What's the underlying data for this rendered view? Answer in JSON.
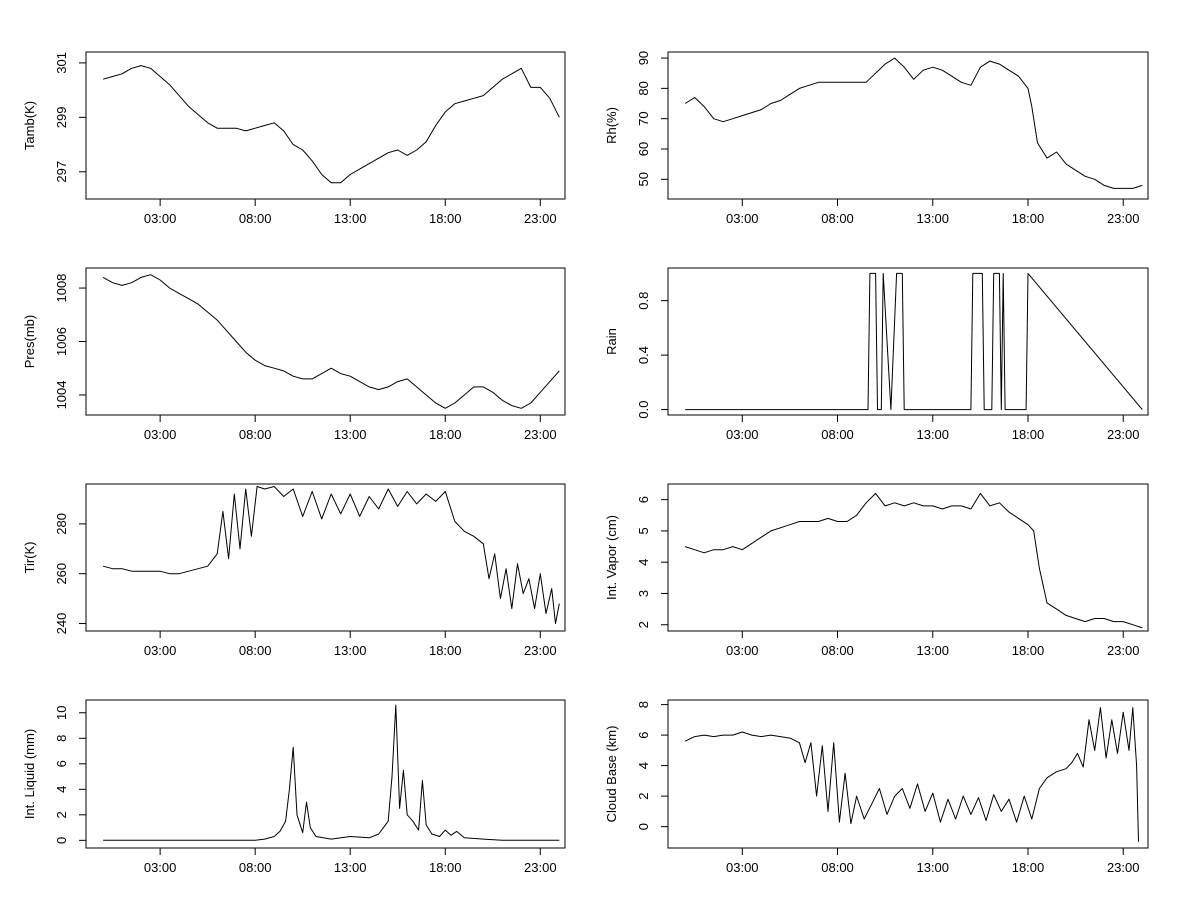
{
  "chart_data": [
    {
      "type": "line",
      "ylabel": "Tamb(K)",
      "x_ticks": [
        "03:00",
        "08:00",
        "13:00",
        "18:00",
        "23:00"
      ],
      "y_ticks": [
        "297",
        "299",
        "301"
      ],
      "xlim_hours": [
        -0.9,
        24.3
      ],
      "ylim": [
        296.0,
        301.4
      ],
      "series": [
        {
          "x": [
            0,
            0.5,
            1,
            1.5,
            2,
            2.5,
            3,
            3.5,
            4,
            4.5,
            5,
            5.5,
            6,
            6.5,
            7,
            7.5,
            8,
            8.5,
            9,
            9.5,
            10,
            10.5,
            11,
            11.5,
            12,
            12.5,
            13,
            13.5,
            14,
            14.5,
            15,
            15.5,
            16,
            16.5,
            17,
            17.5,
            18,
            18.5,
            19,
            19.5,
            20,
            20.5,
            21,
            21.5,
            22,
            22.5,
            23,
            23.5,
            24
          ],
          "y": [
            300.4,
            300.5,
            300.6,
            300.8,
            300.9,
            300.8,
            300.5,
            300.2,
            299.8,
            299.4,
            299.1,
            298.8,
            298.6,
            298.6,
            298.6,
            298.5,
            298.6,
            298.7,
            298.8,
            298.5,
            298.0,
            297.8,
            297.4,
            296.9,
            296.6,
            296.6,
            296.9,
            297.1,
            297.3,
            297.5,
            297.7,
            297.8,
            297.6,
            297.8,
            298.1,
            298.7,
            299.2,
            299.5,
            299.6,
            299.7,
            299.8,
            300.1,
            300.4,
            300.6,
            300.8,
            300.1,
            300.1,
            299.7,
            299.0
          ]
        }
      ]
    },
    {
      "type": "line",
      "ylabel": "Rh(%)",
      "x_ticks": [
        "03:00",
        "08:00",
        "13:00",
        "18:00",
        "23:00"
      ],
      "y_ticks": [
        "50",
        "60",
        "70",
        "80",
        "90"
      ],
      "xlim_hours": [
        -0.9,
        24.3
      ],
      "ylim": [
        43.5,
        92.0
      ],
      "series": [
        {
          "x": [
            0,
            0.5,
            1,
            1.5,
            2,
            2.5,
            3,
            3.5,
            4,
            4.5,
            5,
            5.5,
            6,
            6.5,
            7,
            7.5,
            8,
            8.5,
            9,
            9.5,
            10,
            10.5,
            11,
            11.5,
            12,
            12.5,
            13,
            13.5,
            14,
            14.5,
            15,
            15.5,
            16,
            16.5,
            17,
            17.5,
            18,
            18.2,
            18.5,
            19,
            19.5,
            20,
            20.5,
            21,
            21.5,
            22,
            22.5,
            23,
            23.5,
            24
          ],
          "y": [
            75,
            77,
            74,
            70,
            69,
            70,
            71,
            72,
            73,
            75,
            76,
            78,
            80,
            81,
            82,
            82,
            82,
            82,
            82,
            82,
            85,
            88,
            90,
            87,
            83,
            86,
            87,
            86,
            84,
            82,
            81,
            87,
            89,
            88,
            86,
            84,
            80,
            74,
            62,
            57,
            59,
            55,
            53,
            51,
            50,
            48,
            47,
            47,
            47,
            48
          ]
        }
      ]
    },
    {
      "type": "line",
      "ylabel": "Pres(mb)",
      "x_ticks": [
        "03:00",
        "08:00",
        "13:00",
        "18:00",
        "23:00"
      ],
      "y_ticks": [
        "1004",
        "1006",
        "1008"
      ],
      "xlim_hours": [
        -0.9,
        24.3
      ],
      "ylim": [
        1003.25,
        1008.75
      ],
      "series": [
        {
          "x": [
            0,
            0.5,
            1,
            1.5,
            2,
            2.5,
            3,
            3.5,
            4,
            4.5,
            5,
            5.5,
            6,
            6.5,
            7,
            7.5,
            8,
            8.5,
            9,
            9.5,
            10,
            10.5,
            11,
            11.5,
            12,
            12.5,
            13,
            13.5,
            14,
            14.5,
            15,
            15.5,
            16,
            16.5,
            17,
            17.5,
            18,
            18.5,
            19,
            19.5,
            20,
            20.5,
            21,
            21.5,
            22,
            22.5,
            23,
            23.5,
            24
          ],
          "y": [
            1008.4,
            1008.2,
            1008.1,
            1008.2,
            1008.4,
            1008.5,
            1008.3,
            1008.0,
            1007.8,
            1007.6,
            1007.4,
            1007.1,
            1006.8,
            1006.4,
            1006.0,
            1005.6,
            1005.3,
            1005.1,
            1005.0,
            1004.9,
            1004.7,
            1004.6,
            1004.6,
            1004.8,
            1005.0,
            1004.8,
            1004.7,
            1004.5,
            1004.3,
            1004.2,
            1004.3,
            1004.5,
            1004.6,
            1004.3,
            1004.0,
            1003.7,
            1003.5,
            1003.7,
            1004.0,
            1004.3,
            1004.3,
            1004.1,
            1003.8,
            1003.6,
            1003.5,
            1003.7,
            1004.1,
            1004.5,
            1004.9
          ]
        }
      ]
    },
    {
      "type": "line",
      "ylabel": "Rain",
      "x_ticks": [
        "03:00",
        "08:00",
        "13:00",
        "18:00",
        "23:00"
      ],
      "y_ticks": [
        "0.0",
        "0.4",
        "0.8"
      ],
      "xlim_hours": [
        -0.9,
        24.3
      ],
      "ylim": [
        -0.04,
        1.04
      ],
      "series": [
        {
          "x": [
            0,
            9.6,
            9.7,
            10.0,
            10.1,
            10.3,
            10.4,
            10.8,
            11.1,
            11.4,
            11.5,
            15.0,
            15.1,
            15.6,
            15.7,
            16.1,
            16.2,
            16.5,
            16.6,
            16.7,
            16.8,
            17.9,
            18.0,
            24
          ],
          "y": [
            0,
            0,
            1,
            1,
            0,
            0,
            1,
            0,
            1,
            1,
            0,
            0,
            1,
            1,
            0,
            0,
            1,
            1,
            0,
            1,
            0,
            0,
            1,
            0
          ]
        }
      ]
    },
    {
      "type": "line",
      "ylabel": "Tir(K)",
      "x_ticks": [
        "03:00",
        "08:00",
        "13:00",
        "18:00",
        "23:00"
      ],
      "y_ticks": [
        "240",
        "260",
        "280"
      ],
      "xlim_hours": [
        -0.9,
        24.3
      ],
      "ylim": [
        237.0,
        296.0
      ],
      "series": [
        {
          "x": [
            0,
            0.5,
            1,
            1.5,
            2,
            2.5,
            3,
            3.5,
            4,
            4.5,
            5,
            5.5,
            6,
            6.3,
            6.6,
            6.9,
            7.2,
            7.5,
            7.8,
            8.1,
            8.5,
            9,
            9.5,
            10,
            10.5,
            11,
            11.5,
            12,
            12.5,
            13,
            13.5,
            14,
            14.5,
            15,
            15.5,
            16,
            16.5,
            17,
            17.5,
            18,
            18.5,
            19,
            19.5,
            20,
            20.3,
            20.6,
            20.9,
            21.2,
            21.5,
            21.8,
            22.1,
            22.4,
            22.7,
            23,
            23.3,
            23.6,
            23.8,
            24
          ],
          "y": [
            263,
            262,
            262,
            261,
            261,
            261,
            261,
            260,
            260,
            261,
            262,
            263,
            268,
            285,
            266,
            292,
            270,
            294,
            275,
            295,
            294,
            295,
            291,
            294,
            283,
            293,
            282,
            292,
            284,
            292,
            283,
            291,
            286,
            294,
            287,
            293,
            288,
            292,
            289,
            293,
            281,
            277,
            275,
            272,
            258,
            268,
            250,
            262,
            246,
            264,
            252,
            258,
            246,
            260,
            244,
            254,
            240,
            248
          ]
        }
      ]
    },
    {
      "type": "line",
      "ylabel": "Int. Vapor (cm)",
      "x_ticks": [
        "03:00",
        "08:00",
        "13:00",
        "18:00",
        "23:00"
      ],
      "y_ticks": [
        "2",
        "3",
        "4",
        "5",
        "6"
      ],
      "xlim_hours": [
        -0.9,
        24.3
      ],
      "ylim": [
        1.8,
        6.5
      ],
      "series": [
        {
          "x": [
            0,
            0.5,
            1,
            1.5,
            2,
            2.5,
            3,
            3.5,
            4,
            4.5,
            5,
            5.5,
            6,
            6.5,
            7,
            7.5,
            8,
            8.5,
            9,
            9.5,
            10,
            10.5,
            11,
            11.5,
            12,
            12.5,
            13,
            13.5,
            14,
            14.5,
            15,
            15.5,
            16,
            16.5,
            17,
            17.5,
            18,
            18.3,
            18.6,
            19,
            19.5,
            20,
            20.5,
            21,
            21.5,
            22,
            22.5,
            23,
            23.5,
            24
          ],
          "y": [
            4.5,
            4.4,
            4.3,
            4.4,
            4.4,
            4.5,
            4.4,
            4.6,
            4.8,
            5.0,
            5.1,
            5.2,
            5.3,
            5.3,
            5.3,
            5.4,
            5.3,
            5.3,
            5.5,
            5.9,
            6.2,
            5.8,
            5.9,
            5.8,
            5.9,
            5.8,
            5.8,
            5.7,
            5.8,
            5.8,
            5.7,
            6.2,
            5.8,
            5.9,
            5.6,
            5.4,
            5.2,
            5.0,
            3.8,
            2.7,
            2.5,
            2.3,
            2.2,
            2.1,
            2.2,
            2.2,
            2.1,
            2.1,
            2.0,
            1.9
          ]
        }
      ]
    },
    {
      "type": "line",
      "ylabel": "Int. Liquid (mm)",
      "x_ticks": [
        "03:00",
        "08:00",
        "13:00",
        "18:00",
        "23:00"
      ],
      "y_ticks": [
        "0",
        "2",
        "4",
        "6",
        "8",
        "10"
      ],
      "xlim_hours": [
        -0.9,
        24.3
      ],
      "ylim": [
        -0.6,
        11.0
      ],
      "series": [
        {
          "x": [
            0,
            8.0,
            8.5,
            9.0,
            9.3,
            9.6,
            9.8,
            10.0,
            10.2,
            10.5,
            10.7,
            10.9,
            11.2,
            12.0,
            13.0,
            14.0,
            14.5,
            15.0,
            15.2,
            15.4,
            15.6,
            15.8,
            16.0,
            16.3,
            16.6,
            16.8,
            17.0,
            17.3,
            17.7,
            18.0,
            18.3,
            18.6,
            19.0,
            20.0,
            21.0,
            24
          ],
          "y": [
            0,
            0,
            0.1,
            0.3,
            0.7,
            1.5,
            4.0,
            7.3,
            2.0,
            0.6,
            3.0,
            1.0,
            0.3,
            0.1,
            0.3,
            0.2,
            0.5,
            1.5,
            5.0,
            10.6,
            2.5,
            5.5,
            2.0,
            1.5,
            0.8,
            4.7,
            1.2,
            0.5,
            0.3,
            0.8,
            0.4,
            0.7,
            0.2,
            0.1,
            0.0,
            0
          ]
        }
      ]
    },
    {
      "type": "line",
      "ylabel": "Cloud Base (km)",
      "x_ticks": [
        "03:00",
        "08:00",
        "13:00",
        "18:00",
        "23:00"
      ],
      "y_ticks": [
        "0",
        "2",
        "4",
        "6",
        "8"
      ],
      "xlim_hours": [
        -0.9,
        24.3
      ],
      "ylim": [
        -1.4,
        8.3
      ],
      "series": [
        {
          "x": [
            0,
            0.5,
            1,
            1.5,
            2,
            2.5,
            3,
            3.5,
            4,
            4.5,
            5,
            5.5,
            6,
            6.3,
            6.6,
            6.9,
            7.2,
            7.5,
            7.8,
            8.1,
            8.4,
            8.7,
            9.0,
            9.4,
            9.8,
            10.2,
            10.6,
            11.0,
            11.4,
            11.8,
            12.2,
            12.6,
            13.0,
            13.4,
            13.8,
            14.2,
            14.6,
            15.0,
            15.4,
            15.8,
            16.2,
            16.6,
            17.0,
            17.4,
            17.8,
            18.2,
            18.6,
            19.0,
            19.5,
            20.0,
            20.3,
            20.6,
            20.9,
            21.2,
            21.5,
            21.8,
            22.1,
            22.4,
            22.7,
            23.0,
            23.3,
            23.5,
            23.7,
            23.8
          ],
          "y": [
            5.6,
            5.9,
            6.0,
            5.9,
            6.0,
            6.0,
            6.2,
            6.0,
            5.9,
            6.0,
            5.9,
            5.8,
            5.5,
            4.2,
            5.5,
            2.0,
            5.3,
            1.0,
            5.5,
            0.3,
            3.5,
            0.2,
            2.0,
            0.5,
            1.5,
            2.5,
            0.8,
            2.0,
            2.5,
            1.2,
            2.8,
            1.0,
            2.2,
            0.3,
            1.8,
            0.5,
            2.0,
            0.8,
            1.9,
            0.4,
            2.1,
            1.0,
            1.8,
            0.3,
            2.0,
            0.5,
            2.5,
            3.2,
            3.6,
            3.8,
            4.2,
            4.8,
            3.9,
            7.0,
            5.0,
            7.8,
            4.5,
            7.0,
            4.8,
            7.5,
            5.0,
            7.8,
            4.0,
            -1.0
          ]
        }
      ]
    }
  ]
}
